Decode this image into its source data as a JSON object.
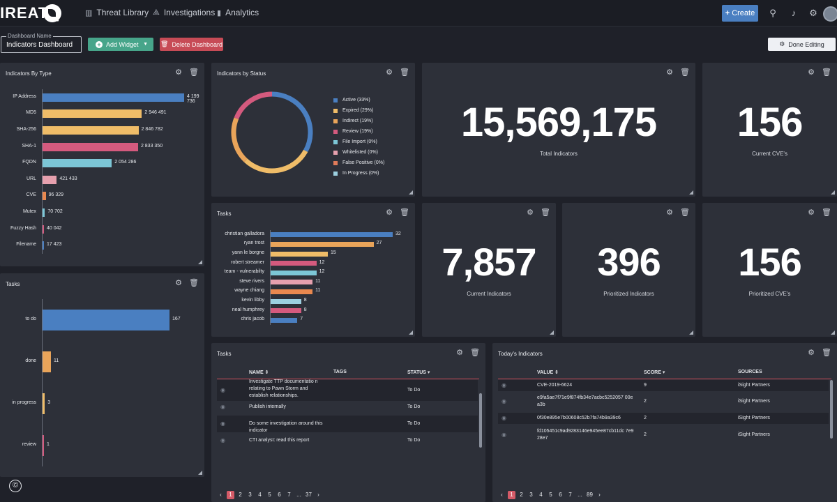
{
  "app": {
    "logo_text": "IREATQ"
  },
  "nav": [
    {
      "label": "Threat Library",
      "icon": "library-icon"
    },
    {
      "label": "Investigations",
      "icon": "graph-icon"
    },
    {
      "label": "Analytics",
      "icon": "chart-icon"
    }
  ],
  "header": {
    "create_label": "Create"
  },
  "toolbar": {
    "dashboard_name_label": "Dashboard Name",
    "dashboard_name_value": "Indicators Dashboard",
    "add_widget_label": "Add Widget",
    "delete_label": "Delete Dashboard",
    "done_label": "Done Editing"
  },
  "colors": {
    "blue": "#4a7fc1",
    "orange": "#e9a45a",
    "yellow": "#efbc68",
    "pink": "#d45a7e",
    "cyan": "#7cc6d6",
    "salmon": "#e07b8a",
    "lightpink": "#e6a0ae",
    "lightblue": "#9ccfe0",
    "accent_red": "#c74b56",
    "green": "#47a58a"
  },
  "widgets": {
    "by_type": {
      "title": "Indicators By Type",
      "chart_data": {
        "type": "bar",
        "orientation": "horizontal",
        "categories": [
          "IP Address",
          "MD5",
          "SHA-256",
          "SHA-1",
          "FQDN",
          "URL",
          "CVE",
          "Mutex",
          "Fuzzy Hash",
          "Filename"
        ],
        "values": [
          4199736,
          2946491,
          2846782,
          2833350,
          2054286,
          421433,
          96329,
          70702,
          40042,
          17423
        ],
        "value_labels": [
          "4 199 736",
          "2 946 491",
          "2 846 782",
          "2 833 350",
          "2 054 286",
          "421 433",
          "96 329",
          "70 702",
          "40 042",
          "17 423"
        ],
        "colors": [
          "#4a7fc1",
          "#efbc68",
          "#efbc68",
          "#d45a7e",
          "#7cc6d6",
          "#e6a0ae",
          "#e9884f",
          "#7cc6d6",
          "#d45a7e",
          "#4a7fc1"
        ]
      }
    },
    "by_status": {
      "title": "Indicators by Status",
      "chart_data": {
        "type": "pie",
        "variant": "donut",
        "legend": [
          "Active (33%)",
          "Expired (29%)",
          "Indirect (19%)",
          "Review (19%)",
          "File Import (0%)",
          "Whitelisted (0%)",
          "False Positive (0%)",
          "In Progress (0%)"
        ],
        "values": [
          33,
          29,
          19,
          19,
          0,
          0,
          0,
          0
        ],
        "colors": [
          "#4a7fc1",
          "#efbc68",
          "#e9a45a",
          "#d45a7e",
          "#7cc6d6",
          "#e6a0ae",
          "#e07b5a",
          "#9ccfe0"
        ],
        "legend_position": "right"
      }
    },
    "total_indicators": {
      "value": "15,569,175",
      "label": "Total Indicators"
    },
    "current_cves": {
      "value": "156",
      "label": "Current CVE's"
    },
    "tasks_users": {
      "title": "Tasks",
      "chart_data": {
        "type": "bar",
        "orientation": "horizontal",
        "categories": [
          "christian galladora",
          "ryan trost",
          "yann le borgne",
          "robert streamer",
          "team - vulnerabilty",
          "steve rivers",
          "wayne chiang",
          "kevin libby",
          "neal humphrey",
          "chris jacob"
        ],
        "values": [
          32,
          27,
          15,
          12,
          12,
          11,
          11,
          8,
          8,
          7
        ],
        "colors": [
          "#4a7fc1",
          "#e9a45a",
          "#efbc68",
          "#d45a7e",
          "#7cc6d6",
          "#e6a0ae",
          "#e9884f",
          "#9ccfe0",
          "#d45a7e",
          "#4a7fc1"
        ]
      }
    },
    "tasks_status": {
      "title": "Tasks",
      "chart_data": {
        "type": "bar",
        "orientation": "horizontal",
        "categories": [
          "to do",
          "done",
          "in progress",
          "review"
        ],
        "values": [
          167,
          11,
          3,
          1
        ],
        "colors": [
          "#4a7fc1",
          "#e9a45a",
          "#efbc68",
          "#d45a7e"
        ]
      }
    },
    "current_indicators": {
      "value": "7,857",
      "label": "Current Indicators"
    },
    "prioritized_indicators": {
      "value": "396",
      "label": "Prioritized Indicators"
    },
    "prioritized_cves": {
      "value": "156",
      "label": "Prioritized CVE's"
    },
    "tasks_table": {
      "title": "Tasks",
      "columns": [
        "NAME",
        "TAGS",
        "STATUS"
      ],
      "rows": [
        {
          "name": "Investigate TTP documentatio n relating to Pawn Storm and establish relationships.",
          "tags": "",
          "status": "To Do"
        },
        {
          "name": "Publish internally",
          "tags": "",
          "status": "To Do"
        },
        {
          "name": "Do some investigation around this indicator",
          "tags": "",
          "status": "To Do"
        },
        {
          "name": "CTI analyst: read this report",
          "tags": "",
          "status": "To Do"
        }
      ],
      "pager": [
        "1",
        "2",
        "3",
        "4",
        "5",
        "6",
        "7",
        "...",
        "37"
      ]
    },
    "todays_indicators": {
      "title": "Today's Indicators",
      "columns": [
        "VALUE",
        "SCORE",
        "SOURCES"
      ],
      "rows": [
        {
          "value": "CVE-2019-6624",
          "score": "9",
          "source": "iSight Partners"
        },
        {
          "value": "e9fa5ae7f71e9f874fb34e7acbc5252057 00ea3b",
          "score": "2",
          "source": "iSight Partners"
        },
        {
          "value": "0f30e895e7b00608c52b7fa74b9a39c6",
          "score": "2",
          "source": "iSight Partners"
        },
        {
          "value": "fd105451c9ad9283146e945ee87cb11dc 7e928e7",
          "score": "2",
          "source": "iSight Partners"
        }
      ],
      "pager": [
        "1",
        "2",
        "3",
        "4",
        "5",
        "6",
        "7",
        "...",
        "89"
      ]
    }
  }
}
